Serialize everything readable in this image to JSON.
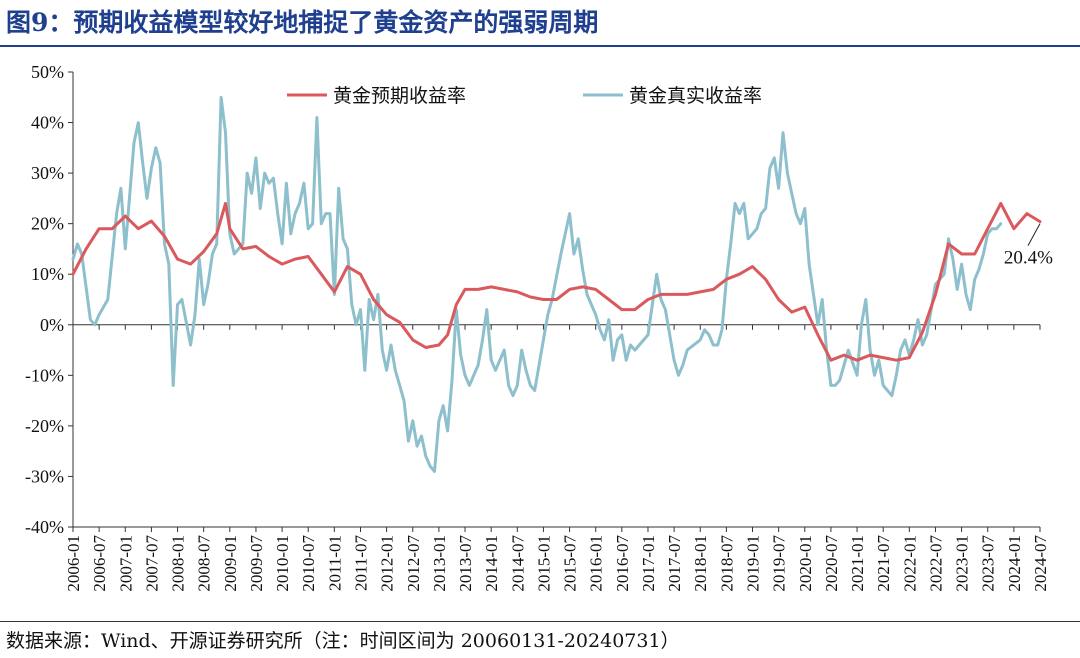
{
  "figure": {
    "title": "图9：预期收益模型较好地捕捉了黄金资产的强弱周期",
    "source": "数据来源：Wind、开源证券研究所（注：时间区间为 20060131-20240731）"
  },
  "colors": {
    "expected": "#d9595d",
    "real": "#8dbfcc",
    "axis": "#333333",
    "text": "#111111"
  },
  "chart_data": {
    "type": "line",
    "title": "",
    "xlabel": "",
    "ylabel": "",
    "ylim": [
      -40,
      50
    ],
    "y_ticks": [
      50,
      40,
      30,
      20,
      10,
      0,
      -10,
      -20,
      -30,
      -40
    ],
    "y_tick_labels": [
      "50%",
      "40%",
      "30%",
      "20%",
      "10%",
      "0%",
      "-10%",
      "-20%",
      "-30%",
      "-40%"
    ],
    "x_ticks": [
      "2006-01",
      "2006-07",
      "2007-01",
      "2007-07",
      "2008-01",
      "2008-07",
      "2009-01",
      "2009-07",
      "2010-01",
      "2010-07",
      "2011-01",
      "2011-07",
      "2012-01",
      "2012-07",
      "2013-01",
      "2013-07",
      "2014-01",
      "2014-07",
      "2015-01",
      "2015-07",
      "2016-01",
      "2016-07",
      "2017-01",
      "2017-07",
      "2018-01",
      "2018-07",
      "2019-01",
      "2019-07",
      "2020-01",
      "2020-07",
      "2021-01",
      "2021-07",
      "2022-01",
      "2022-07",
      "2023-01",
      "2023-07",
      "2024-01",
      "2024-07"
    ],
    "legend_position": "top",
    "grid": false,
    "annotation": {
      "label": "20.4%",
      "date": "2024-07",
      "value": 20.4
    },
    "series": [
      {
        "name": "黄金预期收益率",
        "color": "#d9595d",
        "points": [
          [
            "2006-01",
            10
          ],
          [
            "2006-04",
            15
          ],
          [
            "2006-07",
            19
          ],
          [
            "2006-10",
            19
          ],
          [
            "2007-01",
            21.5
          ],
          [
            "2007-04",
            19
          ],
          [
            "2007-07",
            20.5
          ],
          [
            "2007-10",
            17.5
          ],
          [
            "2008-01",
            13
          ],
          [
            "2008-04",
            12
          ],
          [
            "2008-07",
            14.5
          ],
          [
            "2008-10",
            18
          ],
          [
            "2008-12",
            24
          ],
          [
            "2009-01",
            19
          ],
          [
            "2009-04",
            15
          ],
          [
            "2009-07",
            15.5
          ],
          [
            "2009-10",
            13.5
          ],
          [
            "2010-01",
            12
          ],
          [
            "2010-04",
            13
          ],
          [
            "2010-07",
            13.5
          ],
          [
            "2010-10",
            10
          ],
          [
            "2011-01",
            6.5
          ],
          [
            "2011-04",
            11.5
          ],
          [
            "2011-07",
            10
          ],
          [
            "2011-10",
            5
          ],
          [
            "2012-01",
            2
          ],
          [
            "2012-04",
            0.5
          ],
          [
            "2012-07",
            -3
          ],
          [
            "2012-10",
            -4.5
          ],
          [
            "2013-01",
            -4
          ],
          [
            "2013-03",
            -2
          ],
          [
            "2013-05",
            4
          ],
          [
            "2013-07",
            7
          ],
          [
            "2013-10",
            7
          ],
          [
            "2014-01",
            7.5
          ],
          [
            "2014-04",
            7
          ],
          [
            "2014-07",
            6.5
          ],
          [
            "2014-10",
            5.5
          ],
          [
            "2015-01",
            5
          ],
          [
            "2015-04",
            5
          ],
          [
            "2015-07",
            7
          ],
          [
            "2015-10",
            7.5
          ],
          [
            "2016-01",
            7
          ],
          [
            "2016-04",
            5
          ],
          [
            "2016-07",
            3
          ],
          [
            "2016-10",
            3
          ],
          [
            "2017-01",
            5
          ],
          [
            "2017-04",
            6
          ],
          [
            "2017-07",
            6
          ],
          [
            "2017-10",
            6
          ],
          [
            "2018-01",
            6.5
          ],
          [
            "2018-04",
            7
          ],
          [
            "2018-07",
            9
          ],
          [
            "2018-10",
            10
          ],
          [
            "2019-01",
            11.5
          ],
          [
            "2019-04",
            9
          ],
          [
            "2019-07",
            5
          ],
          [
            "2019-10",
            2.5
          ],
          [
            "2020-01",
            3.5
          ],
          [
            "2020-04",
            -2
          ],
          [
            "2020-07",
            -7
          ],
          [
            "2020-10",
            -6
          ],
          [
            "2021-01",
            -7
          ],
          [
            "2021-04",
            -6
          ],
          [
            "2021-07",
            -6.5
          ],
          [
            "2021-10",
            -7
          ],
          [
            "2022-01",
            -6.5
          ],
          [
            "2022-04",
            -1.5
          ],
          [
            "2022-07",
            6
          ],
          [
            "2022-10",
            16
          ],
          [
            "2023-01",
            14
          ],
          [
            "2023-04",
            14
          ],
          [
            "2023-07",
            19
          ],
          [
            "2023-10",
            24
          ],
          [
            "2024-01",
            19
          ],
          [
            "2024-04",
            22
          ],
          [
            "2024-07",
            20.4
          ]
        ]
      },
      {
        "name": "黄金真实收益率",
        "color": "#8dbfcc",
        "points": [
          [
            "2006-01",
            13
          ],
          [
            "2006-02",
            16
          ],
          [
            "2006-03",
            14
          ],
          [
            "2006-05",
            1
          ],
          [
            "2006-06",
            0
          ],
          [
            "2006-07",
            2
          ],
          [
            "2006-09",
            5
          ],
          [
            "2006-11",
            22
          ],
          [
            "2006-12",
            27
          ],
          [
            "2007-01",
            15
          ],
          [
            "2007-03",
            36
          ],
          [
            "2007-04",
            40
          ],
          [
            "2007-05",
            32
          ],
          [
            "2007-06",
            25
          ],
          [
            "2007-07",
            31
          ],
          [
            "2007-08",
            35
          ],
          [
            "2007-09",
            32
          ],
          [
            "2007-10",
            16
          ],
          [
            "2007-11",
            12
          ],
          [
            "2007-12",
            -12
          ],
          [
            "2008-01",
            4
          ],
          [
            "2008-02",
            5
          ],
          [
            "2008-04",
            -4
          ],
          [
            "2008-05",
            2
          ],
          [
            "2008-06",
            13
          ],
          [
            "2008-07",
            4
          ],
          [
            "2008-08",
            8
          ],
          [
            "2008-09",
            14
          ],
          [
            "2008-10",
            16
          ],
          [
            "2008-11",
            45
          ],
          [
            "2008-12",
            38
          ],
          [
            "2009-01",
            18
          ],
          [
            "2009-02",
            14
          ],
          [
            "2009-04",
            16
          ],
          [
            "2009-05",
            30
          ],
          [
            "2009-06",
            26
          ],
          [
            "2009-07",
            33
          ],
          [
            "2009-08",
            23
          ],
          [
            "2009-09",
            30
          ],
          [
            "2009-10",
            28
          ],
          [
            "2009-11",
            29
          ],
          [
            "2009-12",
            22
          ],
          [
            "2010-01",
            16
          ],
          [
            "2010-02",
            28
          ],
          [
            "2010-03",
            18
          ],
          [
            "2010-04",
            22
          ],
          [
            "2010-05",
            24
          ],
          [
            "2010-06",
            28
          ],
          [
            "2010-07",
            19
          ],
          [
            "2010-08",
            20
          ],
          [
            "2010-09",
            41
          ],
          [
            "2010-10",
            20
          ],
          [
            "2010-11",
            22
          ],
          [
            "2010-12",
            22
          ],
          [
            "2011-01",
            6
          ],
          [
            "2011-02",
            27
          ],
          [
            "2011-03",
            17
          ],
          [
            "2011-04",
            15
          ],
          [
            "2011-05",
            4
          ],
          [
            "2011-06",
            0
          ],
          [
            "2011-07",
            3
          ],
          [
            "2011-08",
            -9
          ],
          [
            "2011-09",
            5
          ],
          [
            "2011-10",
            1
          ],
          [
            "2011-11",
            6
          ],
          [
            "2011-12",
            -5
          ],
          [
            "2012-01",
            -9
          ],
          [
            "2012-02",
            -4
          ],
          [
            "2012-03",
            -9
          ],
          [
            "2012-04",
            -12
          ],
          [
            "2012-05",
            -15
          ],
          [
            "2012-06",
            -23
          ],
          [
            "2012-07",
            -19
          ],
          [
            "2012-08",
            -24
          ],
          [
            "2012-09",
            -22
          ],
          [
            "2012-10",
            -26
          ],
          [
            "2012-11",
            -28
          ],
          [
            "2012-12",
            -29
          ],
          [
            "2013-01",
            -19
          ],
          [
            "2013-02",
            -16
          ],
          [
            "2013-03",
            -21
          ],
          [
            "2013-04",
            -11
          ],
          [
            "2013-05",
            3
          ],
          [
            "2013-06",
            -6
          ],
          [
            "2013-07",
            -10
          ],
          [
            "2013-08",
            -12
          ],
          [
            "2013-10",
            -8
          ],
          [
            "2013-11",
            -3
          ],
          [
            "2013-12",
            3
          ],
          [
            "2014-01",
            -7
          ],
          [
            "2014-02",
            -9
          ],
          [
            "2014-04",
            -5
          ],
          [
            "2014-05",
            -12
          ],
          [
            "2014-06",
            -14
          ],
          [
            "2014-07",
            -12
          ],
          [
            "2014-08",
            -5
          ],
          [
            "2014-09",
            -9
          ],
          [
            "2014-10",
            -12
          ],
          [
            "2014-11",
            -13
          ],
          [
            "2015-01",
            -3
          ],
          [
            "2015-02",
            2
          ],
          [
            "2015-03",
            5
          ],
          [
            "2015-05",
            14
          ],
          [
            "2015-07",
            22
          ],
          [
            "2015-08",
            14
          ],
          [
            "2015-09",
            17
          ],
          [
            "2015-10",
            11
          ],
          [
            "2015-11",
            6
          ],
          [
            "2016-01",
            2
          ],
          [
            "2016-02",
            -1
          ],
          [
            "2016-03",
            -3
          ],
          [
            "2016-04",
            1
          ],
          [
            "2016-05",
            -7
          ],
          [
            "2016-06",
            -3
          ],
          [
            "2016-07",
            -2
          ],
          [
            "2016-08",
            -7
          ],
          [
            "2016-09",
            -4
          ],
          [
            "2016-10",
            -5
          ],
          [
            "2017-01",
            -2
          ],
          [
            "2017-03",
            10
          ],
          [
            "2017-04",
            5
          ],
          [
            "2017-05",
            3
          ],
          [
            "2017-07",
            -7
          ],
          [
            "2017-08",
            -10
          ],
          [
            "2017-09",
            -8
          ],
          [
            "2017-10",
            -5
          ],
          [
            "2018-01",
            -3
          ],
          [
            "2018-02",
            -1
          ],
          [
            "2018-03",
            -2
          ],
          [
            "2018-04",
            -4
          ],
          [
            "2018-05",
            -4
          ],
          [
            "2018-06",
            -1
          ],
          [
            "2018-07",
            9
          ],
          [
            "2018-08",
            16
          ],
          [
            "2018-09",
            24
          ],
          [
            "2018-10",
            22
          ],
          [
            "2018-11",
            24
          ],
          [
            "2018-12",
            17
          ],
          [
            "2019-01",
            18
          ],
          [
            "2019-02",
            19
          ],
          [
            "2019-03",
            22
          ],
          [
            "2019-04",
            23
          ],
          [
            "2019-05",
            31
          ],
          [
            "2019-06",
            33
          ],
          [
            "2019-07",
            27
          ],
          [
            "2019-08",
            38
          ],
          [
            "2019-09",
            30
          ],
          [
            "2019-10",
            26
          ],
          [
            "2019-11",
            22
          ],
          [
            "2019-12",
            20
          ],
          [
            "2020-01",
            23
          ],
          [
            "2020-02",
            12
          ],
          [
            "2020-03",
            6
          ],
          [
            "2020-04",
            0
          ],
          [
            "2020-05",
            5
          ],
          [
            "2020-06",
            -5
          ],
          [
            "2020-07",
            -12
          ],
          [
            "2020-08",
            -12
          ],
          [
            "2020-09",
            -11
          ],
          [
            "2020-10",
            -8
          ],
          [
            "2020-11",
            -5
          ],
          [
            "2021-01",
            -10
          ],
          [
            "2021-02",
            0
          ],
          [
            "2021-03",
            5
          ],
          [
            "2021-04",
            -5
          ],
          [
            "2021-05",
            -10
          ],
          [
            "2021-06",
            -7
          ],
          [
            "2021-07",
            -12
          ],
          [
            "2021-08",
            -13
          ],
          [
            "2021-09",
            -14
          ],
          [
            "2021-10",
            -10
          ],
          [
            "2021-11",
            -5
          ],
          [
            "2021-12",
            -3
          ],
          [
            "2022-01",
            -6
          ],
          [
            "2022-02",
            -3
          ],
          [
            "2022-03",
            1
          ],
          [
            "2022-04",
            -4
          ],
          [
            "2022-05",
            -2
          ],
          [
            "2022-06",
            3
          ],
          [
            "2022-07",
            8
          ],
          [
            "2022-08",
            9
          ],
          [
            "2022-09",
            10
          ],
          [
            "2022-10",
            17
          ],
          [
            "2022-11",
            13
          ],
          [
            "2022-12",
            7
          ],
          [
            "2023-01",
            12
          ],
          [
            "2023-02",
            6
          ],
          [
            "2023-03",
            3
          ],
          [
            "2023-04",
            9
          ],
          [
            "2023-05",
            11
          ],
          [
            "2023-06",
            14
          ],
          [
            "2023-07",
            18
          ],
          [
            "2023-08",
            19
          ],
          [
            "2023-09",
            19
          ],
          [
            "2023-10",
            20
          ]
        ]
      }
    ]
  }
}
